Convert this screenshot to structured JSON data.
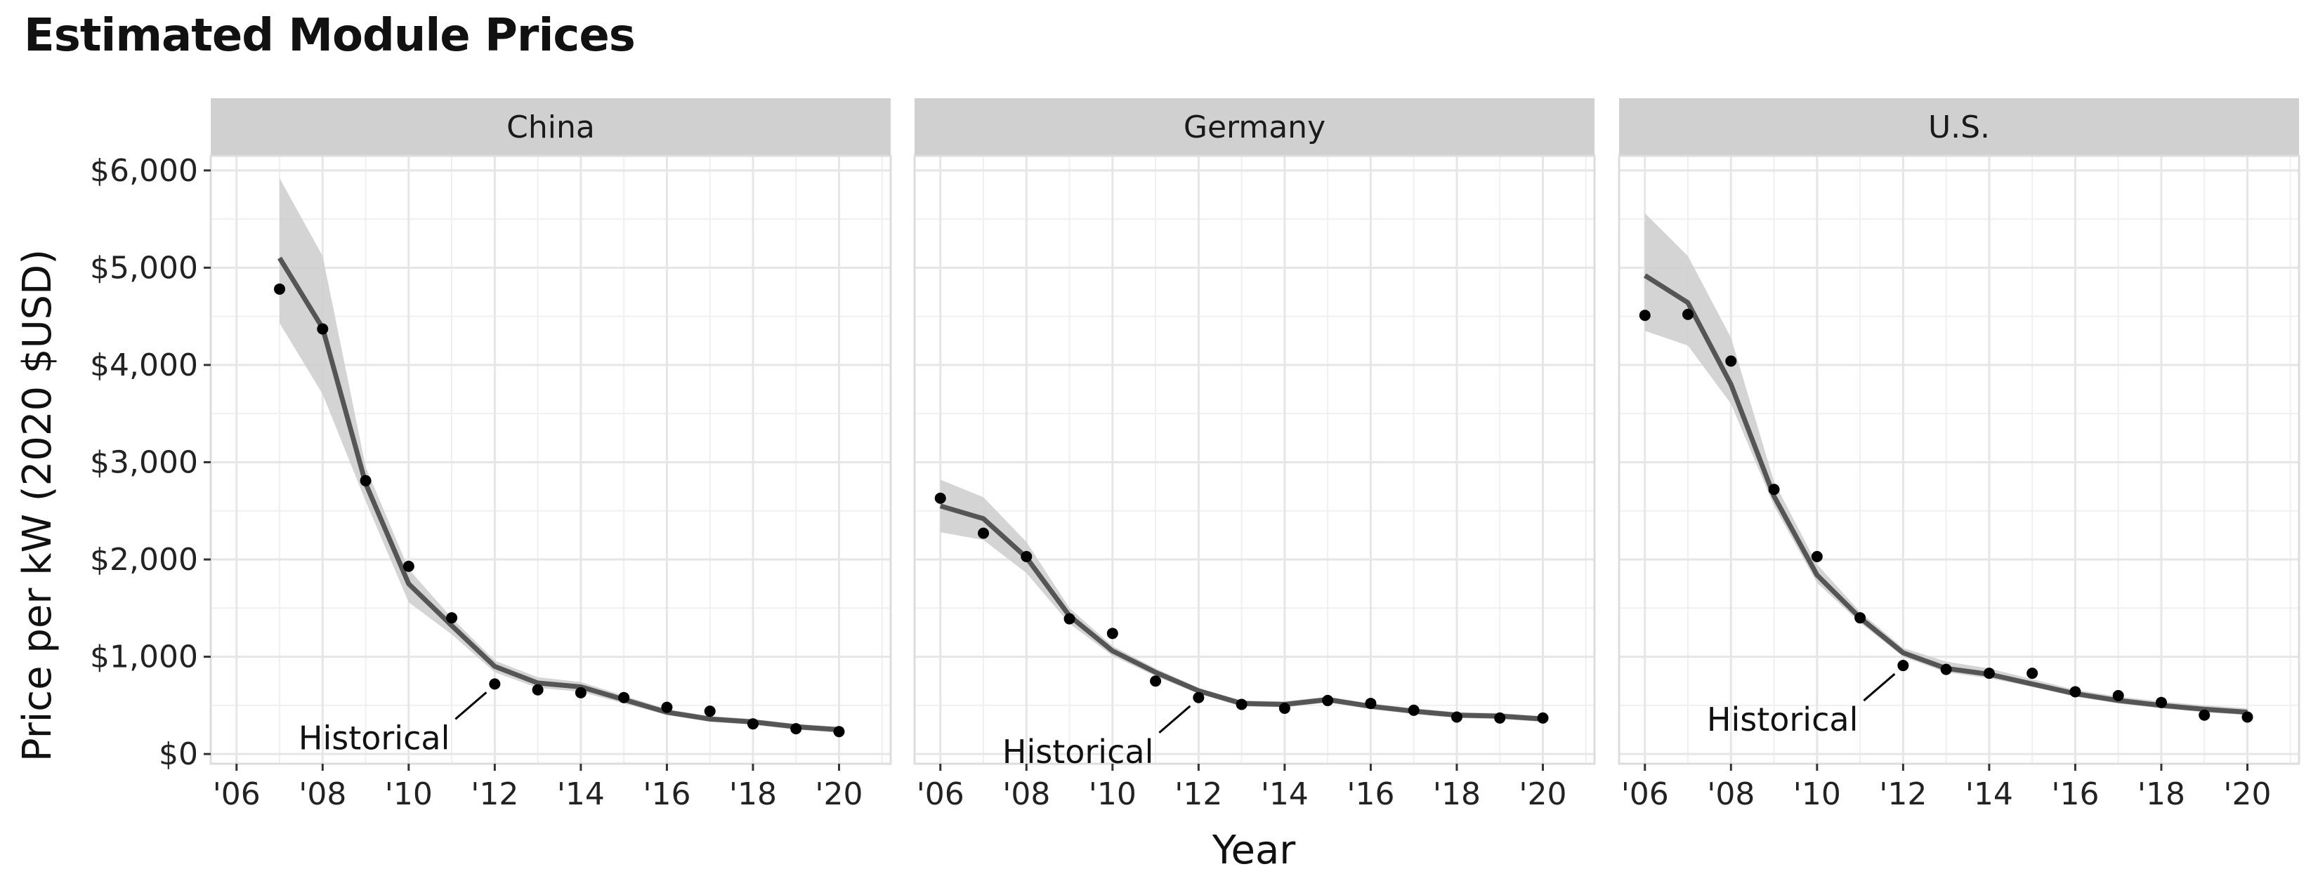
{
  "chart_data": {
    "type": "line",
    "title": "Estimated Module Prices",
    "xlabel": "Year",
    "ylabel": "Price per kW (2020 $USD)",
    "x_tick_labels": [
      "'06",
      "'08",
      "'10",
      "'12",
      "'14",
      "'16",
      "'18",
      "'20"
    ],
    "x_ticks": [
      2006,
      2008,
      2010,
      2012,
      2014,
      2016,
      2018,
      2020
    ],
    "y_tick_labels": [
      "$0",
      "$1,000",
      "$2,000",
      "$3,000",
      "$4,000",
      "$5,000",
      "$6,000"
    ],
    "y_ticks": [
      0,
      1000,
      2000,
      3000,
      4000,
      5000,
      6000
    ],
    "xlim": [
      2005.4,
      2021.2
    ],
    "ylim": [
      -100,
      6150
    ],
    "grid": true,
    "annotation_label": "Historical",
    "colors": {
      "line": "#555555",
      "ribbon": "#cccccc",
      "points": "#000000",
      "strip": "#d0d0d0",
      "grid": "#e6e6e6"
    },
    "panels": [
      {
        "name": "China",
        "points": {
          "x": [
            2007,
            2008,
            2009,
            2010,
            2011,
            2012,
            2013,
            2014,
            2015,
            2016,
            2017,
            2018,
            2019,
            2020
          ],
          "y": [
            4780,
            4370,
            2810,
            1930,
            1400,
            720,
            660,
            630,
            580,
            480,
            440,
            310,
            260,
            230
          ]
        },
        "estimate": {
          "x": [
            2007,
            2008,
            2009,
            2010,
            2011,
            2012,
            2013,
            2014,
            2015,
            2016,
            2017,
            2018,
            2019,
            2020
          ],
          "y": [
            5100,
            4380,
            2780,
            1750,
            1320,
            900,
            730,
            690,
            560,
            430,
            360,
            330,
            280,
            250
          ]
        },
        "lower": [
          4430,
          3700,
          2600,
          1560,
          1230,
          840,
          680,
          640,
          520,
          400,
          330,
          300,
          250,
          220
        ],
        "upper": [
          5920,
          5120,
          2950,
          1900,
          1400,
          960,
          790,
          740,
          600,
          460,
          390,
          360,
          310,
          280
        ]
      },
      {
        "name": "Germany",
        "points": {
          "x": [
            2006,
            2007,
            2008,
            2009,
            2010,
            2011,
            2012,
            2013,
            2014,
            2015,
            2016,
            2017,
            2018,
            2019,
            2020
          ],
          "y": [
            2630,
            2270,
            2030,
            1390,
            1240,
            750,
            580,
            510,
            470,
            550,
            520,
            450,
            380,
            370,
            370
          ]
        },
        "estimate": {
          "x": [
            2006,
            2007,
            2008,
            2009,
            2010,
            2011,
            2012,
            2013,
            2014,
            2015,
            2016,
            2017,
            2018,
            2019,
            2020
          ],
          "y": [
            2550,
            2420,
            2020,
            1420,
            1060,
            840,
            650,
            520,
            510,
            560,
            490,
            440,
            400,
            390,
            360
          ]
        },
        "lower": [
          2280,
          2200,
          1860,
          1340,
          1010,
          800,
          620,
          490,
          480,
          530,
          460,
          410,
          370,
          360,
          330
        ],
        "upper": [
          2820,
          2640,
          2180,
          1500,
          1110,
          880,
          680,
          550,
          540,
          590,
          520,
          470,
          430,
          420,
          390
        ]
      },
      {
        "name": "U.S.",
        "points": {
          "x": [
            2006,
            2007,
            2008,
            2009,
            2010,
            2011,
            2012,
            2013,
            2014,
            2015,
            2016,
            2017,
            2018,
            2019,
            2020
          ],
          "y": [
            4510,
            4520,
            4040,
            2720,
            2030,
            1400,
            910,
            870,
            830,
            830,
            640,
            600,
            530,
            400,
            380
          ]
        },
        "estimate": {
          "x": [
            2006,
            2007,
            2008,
            2009,
            2010,
            2011,
            2012,
            2013,
            2014,
            2015,
            2016,
            2017,
            2018,
            2019,
            2020
          ],
          "y": [
            4920,
            4640,
            3800,
            2650,
            1840,
            1400,
            1040,
            880,
            820,
            720,
            620,
            550,
            500,
            460,
            430
          ]
        },
        "lower": [
          4350,
          4200,
          3600,
          2550,
          1760,
          1350,
          1000,
          840,
          780,
          690,
          590,
          520,
          470,
          430,
          400
        ],
        "upper": [
          5560,
          5120,
          4280,
          2800,
          1950,
          1460,
          1090,
          950,
          880,
          770,
          660,
          590,
          540,
          500,
          470
        ]
      }
    ]
  }
}
